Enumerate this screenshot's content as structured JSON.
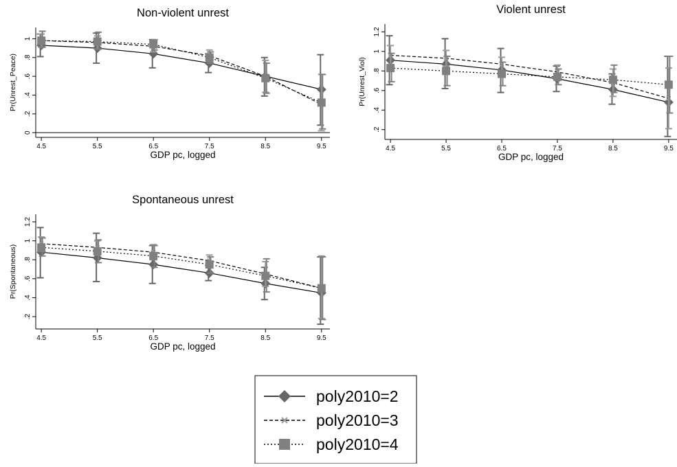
{
  "figure": {
    "legend": [
      {
        "label": "poly2010=2",
        "style": "solid",
        "marker": "diamond",
        "color": "#666666"
      },
      {
        "label": "poly2010=3",
        "style": "dashed",
        "marker": "x",
        "color": "#999999"
      },
      {
        "label": "poly2010=4",
        "style": "dotted",
        "marker": "square",
        "color": "#808080"
      }
    ]
  },
  "chart_data": [
    {
      "type": "line",
      "title": "Non-violent unrest",
      "xlabel": "GDP pc, logged",
      "ylabel": "Pr(Unrest_Peace)",
      "x": [
        4.5,
        5.5,
        6.5,
        7.5,
        8.5,
        9.5
      ],
      "xticks": [
        "4.5",
        "5.5",
        "6.5",
        "7.5",
        "8.5",
        "9.5"
      ],
      "yticks": [
        0,
        0.2,
        0.4,
        0.6,
        0.8,
        1
      ],
      "ytick_labels": [
        "0",
        ".2",
        ".4",
        ".6",
        ".8",
        "1"
      ],
      "xlim": [
        4.4,
        9.65
      ],
      "ylim": [
        -0.05,
        1.12
      ],
      "reference_line": 0,
      "series": [
        {
          "name": "poly2010=2",
          "values": [
            0.93,
            0.9,
            0.84,
            0.74,
            0.6,
            0.46
          ],
          "ci_low": [
            0.81,
            0.74,
            0.69,
            0.64,
            0.39,
            0.08
          ],
          "ci_high": [
            1.05,
            1.06,
            0.99,
            0.84,
            0.8,
            0.83
          ]
        },
        {
          "name": "poly2010=3",
          "values": [
            0.98,
            0.96,
            0.92,
            0.82,
            0.6,
            0.3
          ],
          "ci_low": [
            0.91,
            0.89,
            0.86,
            0.76,
            0.43,
            0.02
          ],
          "ci_high": [
            1.05,
            1.03,
            0.97,
            0.88,
            0.77,
            0.62
          ]
        },
        {
          "name": "poly2010=4",
          "values": [
            0.98,
            0.97,
            0.94,
            0.8,
            0.58,
            0.32
          ],
          "ci_low": [
            0.91,
            0.89,
            0.88,
            0.74,
            0.42,
            0.04
          ],
          "ci_high": [
            1.08,
            1.07,
            0.99,
            0.86,
            0.74,
            0.62
          ]
        }
      ]
    },
    {
      "type": "line",
      "title": "Violent unrest",
      "xlabel": "GDP pc, logged",
      "ylabel": "Pr(Unrest_Viol)",
      "x": [
        4.5,
        5.5,
        6.5,
        7.5,
        8.5,
        9.5
      ],
      "xticks": [
        "4.5",
        "5.5",
        "6.5",
        "7.5",
        "8.5",
        "9.5"
      ],
      "yticks": [
        0.2,
        0.4,
        0.6,
        0.8,
        1,
        1.2
      ],
      "ytick_labels": [
        ".2",
        ".4",
        ".6",
        ".8",
        "1",
        "1.2"
      ],
      "xlim": [
        4.4,
        9.65
      ],
      "ylim": [
        0.1,
        1.28
      ],
      "series": [
        {
          "name": "poly2010=2",
          "values": [
            0.91,
            0.87,
            0.81,
            0.72,
            0.61,
            0.48
          ],
          "ci_low": [
            0.66,
            0.62,
            0.58,
            0.59,
            0.46,
            0.13
          ],
          "ci_high": [
            1.16,
            1.13,
            1.03,
            0.85,
            0.77,
            0.95
          ]
        },
        {
          "name": "poly2010=3",
          "values": [
            0.96,
            0.93,
            0.87,
            0.79,
            0.68,
            0.52
          ],
          "ci_low": [
            0.86,
            0.85,
            0.79,
            0.72,
            0.54,
            0.21
          ],
          "ci_high": [
            1.06,
            1.01,
            0.94,
            0.86,
            0.82,
            0.83
          ]
        },
        {
          "name": "poly2010=4",
          "values": [
            0.83,
            0.8,
            0.77,
            0.74,
            0.71,
            0.66
          ],
          "ci_low": [
            0.69,
            0.65,
            0.65,
            0.66,
            0.58,
            0.37
          ],
          "ci_high": [
            0.98,
            0.95,
            0.89,
            0.82,
            0.86,
            0.95
          ]
        }
      ]
    },
    {
      "type": "line",
      "title": "Spontaneous unrest",
      "xlabel": "GDP pc, logged",
      "ylabel": "Pr(Spontaneous)",
      "x": [
        4.5,
        5.5,
        6.5,
        7.5,
        8.5,
        9.5
      ],
      "xticks": [
        "4.5",
        "5.5",
        "6.5",
        "7.5",
        "8.5",
        "9.5"
      ],
      "yticks": [
        0.2,
        0.4,
        0.6,
        0.8,
        1,
        1.2
      ],
      "ytick_labels": [
        ".2",
        ".4",
        ".6",
        ".8",
        "1",
        "1.2"
      ],
      "xlim": [
        4.4,
        9.65
      ],
      "ylim": [
        0.07,
        1.28
      ],
      "series": [
        {
          "name": "poly2010=2",
          "values": [
            0.88,
            0.82,
            0.75,
            0.66,
            0.55,
            0.45
          ],
          "ci_low": [
            0.61,
            0.57,
            0.55,
            0.58,
            0.38,
            0.12
          ],
          "ci_high": [
            1.14,
            1.08,
            0.95,
            0.74,
            0.72,
            0.83
          ]
        },
        {
          "name": "poly2010=3",
          "values": [
            0.97,
            0.93,
            0.88,
            0.79,
            0.65,
            0.5
          ],
          "ci_low": [
            0.89,
            0.85,
            0.8,
            0.72,
            0.52,
            0.18
          ],
          "ci_high": [
            1.04,
            1.0,
            0.96,
            0.85,
            0.78,
            0.84
          ]
        },
        {
          "name": "poly2010=4",
          "values": [
            0.93,
            0.89,
            0.84,
            0.75,
            0.63,
            0.5
          ],
          "ci_low": [
            0.84,
            0.77,
            0.72,
            0.66,
            0.46,
            0.17
          ],
          "ci_high": [
            1.03,
            1.01,
            0.95,
            0.83,
            0.81,
            0.83
          ]
        }
      ]
    }
  ]
}
